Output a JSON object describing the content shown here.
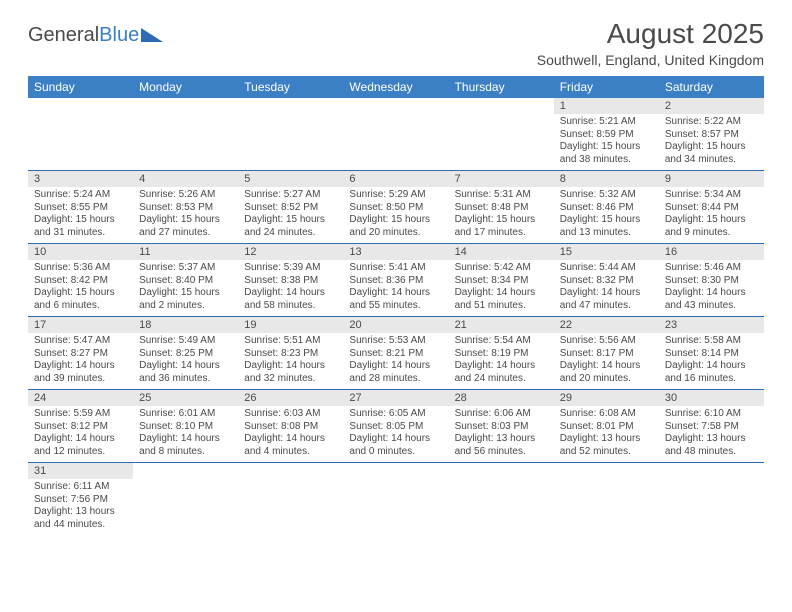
{
  "logo": {
    "general": "General",
    "blue": "Blue"
  },
  "title": {
    "month": "August 2025",
    "location": "Southwell, England, United Kingdom"
  },
  "colors": {
    "header_bg": "#3b7fc4",
    "header_text": "#ffffff",
    "daynum_bg": "#e8e8e8",
    "cell_border": "#2f6bb0",
    "text": "#4a4a4a",
    "background": "#ffffff"
  },
  "typography": {
    "title_fontsize": 28,
    "location_fontsize": 14,
    "header_fontsize": 12,
    "daynum_fontsize": 11,
    "body_fontsize": 10
  },
  "weekdays": [
    "Sunday",
    "Monday",
    "Tuesday",
    "Wednesday",
    "Thursday",
    "Friday",
    "Saturday"
  ],
  "weeks": [
    [
      {
        "n": "",
        "sr": "",
        "ss": "",
        "dl": ""
      },
      {
        "n": "",
        "sr": "",
        "ss": "",
        "dl": ""
      },
      {
        "n": "",
        "sr": "",
        "ss": "",
        "dl": ""
      },
      {
        "n": "",
        "sr": "",
        "ss": "",
        "dl": ""
      },
      {
        "n": "",
        "sr": "",
        "ss": "",
        "dl": ""
      },
      {
        "n": "1",
        "sr": "Sunrise: 5:21 AM",
        "ss": "Sunset: 8:59 PM",
        "dl": "Daylight: 15 hours and 38 minutes."
      },
      {
        "n": "2",
        "sr": "Sunrise: 5:22 AM",
        "ss": "Sunset: 8:57 PM",
        "dl": "Daylight: 15 hours and 34 minutes."
      }
    ],
    [
      {
        "n": "3",
        "sr": "Sunrise: 5:24 AM",
        "ss": "Sunset: 8:55 PM",
        "dl": "Daylight: 15 hours and 31 minutes."
      },
      {
        "n": "4",
        "sr": "Sunrise: 5:26 AM",
        "ss": "Sunset: 8:53 PM",
        "dl": "Daylight: 15 hours and 27 minutes."
      },
      {
        "n": "5",
        "sr": "Sunrise: 5:27 AM",
        "ss": "Sunset: 8:52 PM",
        "dl": "Daylight: 15 hours and 24 minutes."
      },
      {
        "n": "6",
        "sr": "Sunrise: 5:29 AM",
        "ss": "Sunset: 8:50 PM",
        "dl": "Daylight: 15 hours and 20 minutes."
      },
      {
        "n": "7",
        "sr": "Sunrise: 5:31 AM",
        "ss": "Sunset: 8:48 PM",
        "dl": "Daylight: 15 hours and 17 minutes."
      },
      {
        "n": "8",
        "sr": "Sunrise: 5:32 AM",
        "ss": "Sunset: 8:46 PM",
        "dl": "Daylight: 15 hours and 13 minutes."
      },
      {
        "n": "9",
        "sr": "Sunrise: 5:34 AM",
        "ss": "Sunset: 8:44 PM",
        "dl": "Daylight: 15 hours and 9 minutes."
      }
    ],
    [
      {
        "n": "10",
        "sr": "Sunrise: 5:36 AM",
        "ss": "Sunset: 8:42 PM",
        "dl": "Daylight: 15 hours and 6 minutes."
      },
      {
        "n": "11",
        "sr": "Sunrise: 5:37 AM",
        "ss": "Sunset: 8:40 PM",
        "dl": "Daylight: 15 hours and 2 minutes."
      },
      {
        "n": "12",
        "sr": "Sunrise: 5:39 AM",
        "ss": "Sunset: 8:38 PM",
        "dl": "Daylight: 14 hours and 58 minutes."
      },
      {
        "n": "13",
        "sr": "Sunrise: 5:41 AM",
        "ss": "Sunset: 8:36 PM",
        "dl": "Daylight: 14 hours and 55 minutes."
      },
      {
        "n": "14",
        "sr": "Sunrise: 5:42 AM",
        "ss": "Sunset: 8:34 PM",
        "dl": "Daylight: 14 hours and 51 minutes."
      },
      {
        "n": "15",
        "sr": "Sunrise: 5:44 AM",
        "ss": "Sunset: 8:32 PM",
        "dl": "Daylight: 14 hours and 47 minutes."
      },
      {
        "n": "16",
        "sr": "Sunrise: 5:46 AM",
        "ss": "Sunset: 8:30 PM",
        "dl": "Daylight: 14 hours and 43 minutes."
      }
    ],
    [
      {
        "n": "17",
        "sr": "Sunrise: 5:47 AM",
        "ss": "Sunset: 8:27 PM",
        "dl": "Daylight: 14 hours and 39 minutes."
      },
      {
        "n": "18",
        "sr": "Sunrise: 5:49 AM",
        "ss": "Sunset: 8:25 PM",
        "dl": "Daylight: 14 hours and 36 minutes."
      },
      {
        "n": "19",
        "sr": "Sunrise: 5:51 AM",
        "ss": "Sunset: 8:23 PM",
        "dl": "Daylight: 14 hours and 32 minutes."
      },
      {
        "n": "20",
        "sr": "Sunrise: 5:53 AM",
        "ss": "Sunset: 8:21 PM",
        "dl": "Daylight: 14 hours and 28 minutes."
      },
      {
        "n": "21",
        "sr": "Sunrise: 5:54 AM",
        "ss": "Sunset: 8:19 PM",
        "dl": "Daylight: 14 hours and 24 minutes."
      },
      {
        "n": "22",
        "sr": "Sunrise: 5:56 AM",
        "ss": "Sunset: 8:17 PM",
        "dl": "Daylight: 14 hours and 20 minutes."
      },
      {
        "n": "23",
        "sr": "Sunrise: 5:58 AM",
        "ss": "Sunset: 8:14 PM",
        "dl": "Daylight: 14 hours and 16 minutes."
      }
    ],
    [
      {
        "n": "24",
        "sr": "Sunrise: 5:59 AM",
        "ss": "Sunset: 8:12 PM",
        "dl": "Daylight: 14 hours and 12 minutes."
      },
      {
        "n": "25",
        "sr": "Sunrise: 6:01 AM",
        "ss": "Sunset: 8:10 PM",
        "dl": "Daylight: 14 hours and 8 minutes."
      },
      {
        "n": "26",
        "sr": "Sunrise: 6:03 AM",
        "ss": "Sunset: 8:08 PM",
        "dl": "Daylight: 14 hours and 4 minutes."
      },
      {
        "n": "27",
        "sr": "Sunrise: 6:05 AM",
        "ss": "Sunset: 8:05 PM",
        "dl": "Daylight: 14 hours and 0 minutes."
      },
      {
        "n": "28",
        "sr": "Sunrise: 6:06 AM",
        "ss": "Sunset: 8:03 PM",
        "dl": "Daylight: 13 hours and 56 minutes."
      },
      {
        "n": "29",
        "sr": "Sunrise: 6:08 AM",
        "ss": "Sunset: 8:01 PM",
        "dl": "Daylight: 13 hours and 52 minutes."
      },
      {
        "n": "30",
        "sr": "Sunrise: 6:10 AM",
        "ss": "Sunset: 7:58 PM",
        "dl": "Daylight: 13 hours and 48 minutes."
      }
    ],
    [
      {
        "n": "31",
        "sr": "Sunrise: 6:11 AM",
        "ss": "Sunset: 7:56 PM",
        "dl": "Daylight: 13 hours and 44 minutes."
      },
      {
        "n": "",
        "sr": "",
        "ss": "",
        "dl": ""
      },
      {
        "n": "",
        "sr": "",
        "ss": "",
        "dl": ""
      },
      {
        "n": "",
        "sr": "",
        "ss": "",
        "dl": ""
      },
      {
        "n": "",
        "sr": "",
        "ss": "",
        "dl": ""
      },
      {
        "n": "",
        "sr": "",
        "ss": "",
        "dl": ""
      },
      {
        "n": "",
        "sr": "",
        "ss": "",
        "dl": ""
      }
    ]
  ]
}
